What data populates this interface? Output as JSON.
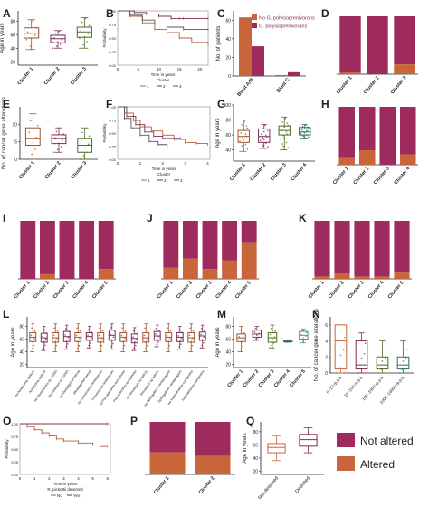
{
  "colors": {
    "not_altered": "#9e2a5e",
    "altered": "#c8653a",
    "cluster1": "#a0522d",
    "cluster2": "#7b2d55",
    "cluster3": "#4e6b1e",
    "cluster4": "#2f6e5e",
    "cluster5": "#5a8a96",
    "km_gray": "#999999",
    "km_line1": "#b0603a",
    "km_line2": "#7b2d55",
    "km_line3": "#555555"
  },
  "legend": {
    "not_altered": "Not altered",
    "altered": "Altered"
  },
  "chart_data": [
    {
      "panel": "A",
      "type": "box",
      "categories": [
        "Cluster 1",
        "Cluster 2",
        "Cluster 3"
      ],
      "ylabel": "Age in years",
      "yticks": [
        20,
        40,
        60,
        80
      ],
      "ylim": [
        15,
        95
      ],
      "boxes": [
        {
          "min": 38,
          "q1": 55,
          "median": 62,
          "q3": 70,
          "max": 82
        },
        {
          "min": 40,
          "q1": 48,
          "median": 54,
          "q3": 59,
          "max": 66
        },
        {
          "min": 40,
          "q1": 56,
          "median": 64,
          "q3": 71,
          "max": 85
        }
      ]
    },
    {
      "panel": "B",
      "type": "line",
      "xlabel": "Time in years",
      "ylabel": "Probability",
      "xticks": [
        0,
        5,
        10,
        15,
        20
      ],
      "yticks": [
        "0.00",
        "0.25",
        "0.50",
        "0.75",
        "1.00"
      ],
      "xlim": [
        0,
        22
      ],
      "ylim": [
        0,
        1
      ],
      "legend_title": "Cluster",
      "series": [
        {
          "name": "1",
          "x": [
            0,
            3,
            6,
            9,
            12,
            15,
            18,
            22
          ],
          "y": [
            1.0,
            0.9,
            0.78,
            0.66,
            0.6,
            0.5,
            0.42,
            0.38
          ]
        },
        {
          "name": "2",
          "x": [
            0,
            4,
            7,
            10,
            13,
            15,
            16,
            22
          ],
          "y": [
            1.0,
            0.97,
            0.94,
            0.9,
            0.86,
            0.86,
            0.86,
            0.86
          ]
        },
        {
          "name": "3",
          "x": [
            0,
            3,
            6,
            9,
            12,
            16,
            22
          ],
          "y": [
            1.0,
            0.92,
            0.83,
            0.76,
            0.7,
            0.66,
            0.66
          ]
        }
      ]
    },
    {
      "panel": "C",
      "type": "bar",
      "categories": [
        "Blast A/B",
        "Blast C"
      ],
      "ylabel": "No. of patients",
      "yticks": [
        0,
        20,
        40,
        60
      ],
      "ylim": [
        0,
        70
      ],
      "series": [
        {
          "name": "No G. polyisoprenivorans",
          "values": [
            63,
            1
          ]
        },
        {
          "name": "G. polyisoprenivorans",
          "values": [
            32,
            5
          ]
        }
      ]
    },
    {
      "panel": "D",
      "type": "bar",
      "categories": [
        "Cluster 1",
        "Cluster 2",
        "Cluster 3"
      ],
      "stacked_percent": true,
      "altered": [
        0.04,
        0.0,
        0.17
      ]
    },
    {
      "panel": "E",
      "type": "box",
      "categories": [
        "Cluster 1",
        "Cluster 2",
        "Cluster 3"
      ],
      "ylabel": "No. of cancer gene alterations",
      "yticks": [
        0,
        5,
        10
      ],
      "ylim": [
        0,
        15
      ],
      "boxes": [
        {
          "min": 0,
          "q1": 4,
          "median": 6,
          "q3": 9,
          "max": 13
        },
        {
          "min": 2,
          "q1": 4.5,
          "median": 6,
          "q3": 7,
          "max": 9
        },
        {
          "min": 0,
          "q1": 2,
          "median": 4,
          "q3": 6,
          "max": 9
        }
      ]
    },
    {
      "panel": "F",
      "type": "line",
      "xlabel": "Time in years",
      "ylabel": "Probability",
      "xticks": [
        0,
        1,
        2,
        3,
        4
      ],
      "yticks": [
        "0.00",
        "0.25",
        "0.50",
        "0.75",
        "1.00"
      ],
      "xlim": [
        0,
        4.1
      ],
      "ylim": [
        0,
        1
      ],
      "legend_title": "Cluster",
      "series": [
        {
          "name": "1",
          "x": [
            0,
            0.3,
            0.7,
            1.0,
            1.5,
            2.0,
            2.5,
            3.0,
            3.5,
            4.0
          ],
          "y": [
            1.0,
            0.88,
            0.74,
            0.62,
            0.54,
            0.46,
            0.38,
            0.32,
            0.3,
            0.28
          ]
        },
        {
          "name": "2",
          "x": [
            0,
            0.4,
            0.8,
            1.2,
            1.6,
            2.0,
            2.8
          ],
          "y": [
            1.0,
            0.82,
            0.66,
            0.52,
            0.44,
            0.4,
            0.4
          ]
        },
        {
          "name": "3",
          "x": [
            0,
            0.3,
            0.6,
            1.0,
            1.4,
            1.8,
            2.2
          ],
          "y": [
            1.0,
            0.78,
            0.6,
            0.46,
            0.34,
            0.28,
            0.2
          ]
        }
      ]
    },
    {
      "panel": "G",
      "type": "box",
      "categories": [
        "Cluster 1",
        "Cluster 2",
        "Cluster 3",
        "Cluster 4"
      ],
      "ylabel": "Age in years",
      "yticks": [
        40,
        60,
        80,
        100
      ],
      "ylim": [
        25,
        100
      ],
      "boxes": [
        {
          "min": 38,
          "q1": 50,
          "median": 58,
          "q3": 66,
          "max": 80
        },
        {
          "min": 42,
          "q1": 50,
          "median": 58,
          "q3": 68,
          "max": 74
        },
        {
          "min": 40,
          "q1": 60,
          "median": 66,
          "q3": 72,
          "max": 84
        },
        {
          "min": 56,
          "q1": 60,
          "median": 64,
          "q3": 70,
          "max": 74
        }
      ]
    },
    {
      "panel": "H",
      "type": "bar",
      "categories": [
        "Cluster 1",
        "Cluster 2",
        "Cluster 3",
        "Cluster 4"
      ],
      "stacked_percent": true,
      "altered": [
        0.13,
        0.25,
        0.0,
        0.18
      ]
    },
    {
      "panel": "I",
      "type": "bar",
      "categories": [
        "Cluster 1",
        "Cluster 2",
        "Cluster 3",
        "Cluster 4",
        "Cluster 5"
      ],
      "stacked_percent": true,
      "altered": [
        0.0,
        0.08,
        0.0,
        0.0,
        0.17
      ]
    },
    {
      "panel": "J",
      "type": "bar",
      "categories": [
        "Cluster 1",
        "Cluster 2",
        "Cluster 3",
        "Cluster 4",
        "Cluster 5"
      ],
      "stacked_percent": true,
      "altered": [
        0.19,
        0.35,
        0.17,
        0.32,
        0.63
      ]
    },
    {
      "panel": "K",
      "type": "bar",
      "categories": [
        "Cluster 1",
        "Cluster 2",
        "Cluster 3",
        "Cluster 4",
        "Cluster 5"
      ],
      "stacked_percent": true,
      "altered": [
        0.04,
        0.1,
        0.04,
        0.04,
        0.12
      ]
    },
    {
      "panel": "L",
      "type": "box",
      "ylabel": "Age in years",
      "yticks": [
        20,
        40,
        60,
        80
      ],
      "ylim": [
        15,
        95
      ],
      "categories": [
        "no Acidovorax defluvii",
        "Acidovorax defluvii",
        "no Alkanindiges sp. JJ005",
        "Alkanindiges sp. JJ005",
        "no Alkalipliginae boreal",
        "Alkalipliginae boreal",
        "no Comamonas testosteroni",
        "Comamonas testosteroni",
        "no Pseudomonas aeruginosa",
        "Pseudomonas aeruginosa",
        "no Rhizobium sp. MK01",
        "Rhizobium sp. MK01",
        "no Sphingobium xenophagum",
        "Sphingobium xenophagum",
        "no Xanthomonas campestris",
        "Xanthomonas campestris"
      ],
      "boxes": [
        {
          "min": 40,
          "q1": 56,
          "median": 63,
          "q3": 70,
          "max": 84
        },
        {
          "min": 42,
          "q1": 55,
          "median": 62,
          "q3": 69,
          "max": 80
        },
        {
          "min": 40,
          "q1": 55,
          "median": 62,
          "q3": 70,
          "max": 84
        },
        {
          "min": 44,
          "q1": 56,
          "median": 64,
          "q3": 72,
          "max": 82
        },
        {
          "min": 40,
          "q1": 56,
          "median": 63,
          "q3": 70,
          "max": 84
        },
        {
          "min": 46,
          "q1": 58,
          "median": 64,
          "q3": 70,
          "max": 80
        },
        {
          "min": 40,
          "q1": 55,
          "median": 62,
          "q3": 70,
          "max": 84
        },
        {
          "min": 44,
          "q1": 58,
          "median": 66,
          "q3": 74,
          "max": 84
        },
        {
          "min": 40,
          "q1": 56,
          "median": 63,
          "q3": 70,
          "max": 84
        },
        {
          "min": 42,
          "q1": 54,
          "median": 61,
          "q3": 68,
          "max": 78
        },
        {
          "min": 40,
          "q1": 55,
          "median": 62,
          "q3": 70,
          "max": 84
        },
        {
          "min": 48,
          "q1": 58,
          "median": 65,
          "q3": 72,
          "max": 82
        },
        {
          "min": 40,
          "q1": 56,
          "median": 63,
          "q3": 70,
          "max": 84
        },
        {
          "min": 44,
          "q1": 56,
          "median": 63,
          "q3": 70,
          "max": 80
        },
        {
          "min": 40,
          "q1": 55,
          "median": 62,
          "q3": 70,
          "max": 84
        },
        {
          "min": 46,
          "q1": 58,
          "median": 65,
          "q3": 71,
          "max": 82
        }
      ]
    },
    {
      "panel": "M",
      "type": "box",
      "categories": [
        "Cluster 1",
        "Cluster 2",
        "Cluster 3",
        "Cluster 4",
        "Cluster 5"
      ],
      "ylabel": "Age in years",
      "yticks": [
        20,
        40,
        60,
        80
      ],
      "ylim": [
        15,
        95
      ],
      "boxes": [
        {
          "min": 40,
          "q1": 56,
          "median": 62,
          "q3": 68,
          "max": 80
        },
        {
          "min": 58,
          "q1": 63,
          "median": 68,
          "q3": 74,
          "max": 80
        },
        {
          "min": 46,
          "q1": 55,
          "median": 62,
          "q3": 70,
          "max": 82
        },
        {
          "min": 55,
          "q1": 56,
          "median": 56,
          "q3": 57,
          "max": 57
        },
        {
          "min": 54,
          "q1": 60,
          "median": 66,
          "q3": 72,
          "max": 76
        }
      ]
    },
    {
      "panel": "N",
      "type": "box",
      "categories": [
        "0 -10 rp.p.b.",
        "10 -100 rp.p.b.",
        "100 -1000 rp.p.b.",
        "1000 -10000 rp.p.b."
      ],
      "ylabel": "No. of cancer gene alterations",
      "yticks": [
        0,
        2,
        4,
        6
      ],
      "ylim": [
        0,
        7
      ],
      "boxes": [
        {
          "min": 0,
          "q1": 0.5,
          "median": 4,
          "q3": 6,
          "max": 6
        },
        {
          "min": 0,
          "q1": 0.5,
          "median": 1,
          "q3": 4,
          "max": 5
        },
        {
          "min": 0,
          "q1": 0.5,
          "median": 1,
          "q3": 2,
          "max": 4
        },
        {
          "min": 0,
          "q1": 0.5,
          "median": 1,
          "q3": 2,
          "max": 4
        }
      ]
    },
    {
      "panel": "O",
      "type": "line",
      "xlabel": "Time in years",
      "ylabel": "Probability",
      "xticks": [
        0,
        1,
        2,
        3,
        4,
        5,
        6
      ],
      "yticks": [
        "0.00",
        "0.25",
        "0.50",
        "0.75",
        "1.00"
      ],
      "xlim": [
        0,
        6.2
      ],
      "ylim": [
        0,
        1
      ],
      "legend_title": "R. pickettii detected",
      "series": [
        {
          "name": "No",
          "x": [
            0,
            0.5,
            1.0,
            1.5,
            2.0,
            2.5,
            3.0,
            4.0,
            5.0,
            5.5,
            6.0
          ],
          "y": [
            1.0,
            0.94,
            0.88,
            0.82,
            0.76,
            0.7,
            0.66,
            0.62,
            0.58,
            0.55,
            0.55
          ]
        },
        {
          "name": "Yes",
          "x": [
            0,
            6.0
          ],
          "y": [
            1.0,
            1.0
          ]
        }
      ]
    },
    {
      "panel": "P",
      "type": "bar",
      "categories": [
        "Cluster 1",
        "Cluster 2"
      ],
      "stacked_percent": true,
      "altered": [
        0.42,
        0.35
      ]
    },
    {
      "panel": "Q",
      "type": "box",
      "categories": [
        "Not detected",
        "Detected"
      ],
      "ylabel": "Age in years",
      "yticks": [
        20,
        40,
        60,
        80
      ],
      "ylim": [
        15,
        95
      ],
      "boxes": [
        {
          "min": 36,
          "q1": 48,
          "median": 56,
          "q3": 62,
          "max": 74
        },
        {
          "min": 48,
          "q1": 58,
          "median": 68,
          "q3": 76,
          "max": 86
        }
      ]
    }
  ]
}
